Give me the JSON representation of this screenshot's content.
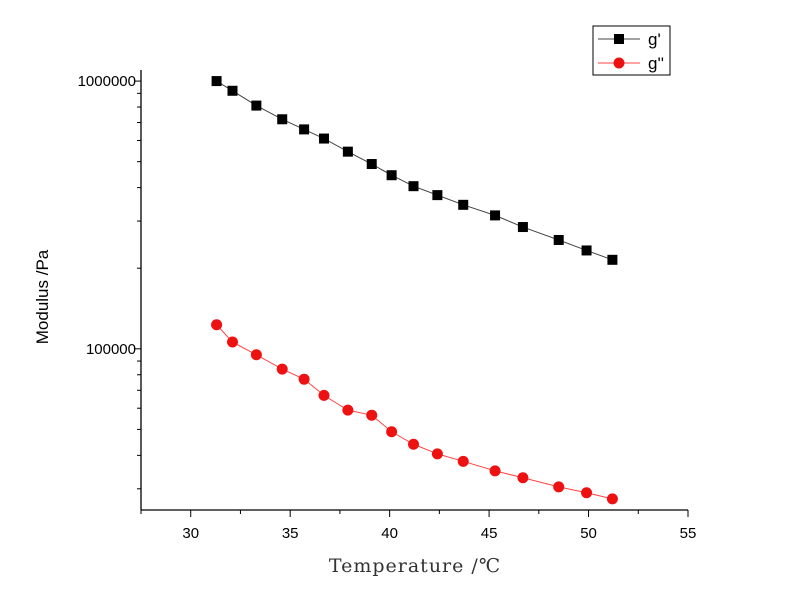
{
  "chart_data": {
    "type": "scatter",
    "title": "",
    "xlabel": "Temperature /℃",
    "ylabel": "Modulus /Pa",
    "xlim": [
      27.5,
      55
    ],
    "ylim": [
      25000,
      1100000
    ],
    "yscale": "log",
    "grid": false,
    "legend_position": "top-right",
    "x_ticks": [
      30,
      35,
      40,
      45,
      50,
      55
    ],
    "y_tick_labels": [
      {
        "value": 100000,
        "label": "100000"
      },
      {
        "value": 1000000,
        "label": "1000000"
      }
    ],
    "series": [
      {
        "name": "g'",
        "color": "#000000",
        "line_color": "#444444",
        "marker": "square",
        "x": [
          31.3,
          32.1,
          33.3,
          34.6,
          35.7,
          36.7,
          37.9,
          39.1,
          40.1,
          41.2,
          42.4,
          43.7,
          45.3,
          46.7,
          48.5,
          49.9,
          51.2
        ],
        "y": [
          1000000,
          920000,
          810000,
          720000,
          660000,
          610000,
          545000,
          490000,
          445000,
          405000,
          375000,
          345000,
          315000,
          285000,
          255000,
          233000,
          215000
        ]
      },
      {
        "name": "g''",
        "color": "#ee1111",
        "line_color": "#ff4444",
        "marker": "circle",
        "x": [
          31.3,
          32.1,
          33.3,
          34.6,
          35.7,
          36.7,
          37.9,
          39.1,
          40.1,
          41.2,
          42.4,
          43.7,
          45.3,
          46.7,
          48.5,
          49.9,
          51.2
        ],
        "y": [
          123000,
          106000,
          95000,
          84000,
          77000,
          67000,
          59000,
          56500,
          49000,
          44000,
          40500,
          38000,
          35000,
          33000,
          30500,
          29000,
          27500
        ]
      }
    ]
  }
}
